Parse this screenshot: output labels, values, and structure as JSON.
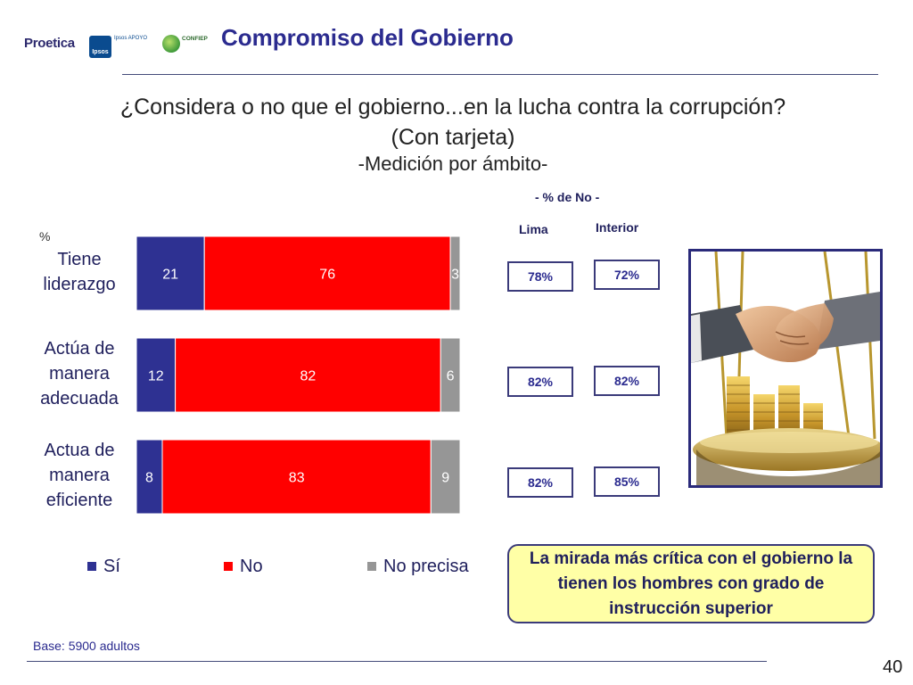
{
  "header": {
    "title": "Compromiso del Gobierno",
    "logos": {
      "proetica": "Proetica",
      "ipsos": "Ipsos",
      "ipsos_apoyo": "Ipsos APOYO",
      "confiep": "CONFIEP"
    }
  },
  "question": {
    "line1": "¿Considera o no que el gobierno...en la lucha contra la corrupción?",
    "line2": "(Con tarjeta)",
    "subtitle": "-Medición por ámbito-"
  },
  "chart_data": {
    "type": "bar",
    "orientation": "horizontal",
    "stacked": true,
    "unit_label": "%",
    "categories": [
      [
        "Tiene",
        "liderazgo"
      ],
      [
        "Actúa de",
        "manera",
        "adecuada"
      ],
      [
        "Actua de",
        "manera",
        "eficiente"
      ]
    ],
    "series": [
      {
        "name": "Sí",
        "values": [
          21,
          12,
          8
        ],
        "color": "#2e3192"
      },
      {
        "name": "No",
        "values": [
          76,
          82,
          83
        ],
        "color": "#ff0000"
      },
      {
        "name": "No precisa",
        "values": [
          3,
          6,
          9
        ],
        "color": "#969696"
      }
    ],
    "xlim": [
      0,
      100
    ],
    "grid": false,
    "legend": "bottom"
  },
  "no_table": {
    "title": "- % de No -",
    "columns": [
      "Lima",
      "Interior"
    ],
    "rows": [
      [
        "78%",
        "72%"
      ],
      [
        "82%",
        "82%"
      ],
      [
        "82%",
        "85%"
      ]
    ]
  },
  "callout": "La mirada más crítica con el gobierno la tienen los hombres con grado de instrucción superior",
  "footer": {
    "base": "Base: 5900 adultos",
    "page_number": "40"
  },
  "colors": {
    "title": "#2b2b8f",
    "si": "#2e3192",
    "no": "#ff0000",
    "no_precisa": "#969696",
    "callout_bg": "#ffffa6"
  }
}
